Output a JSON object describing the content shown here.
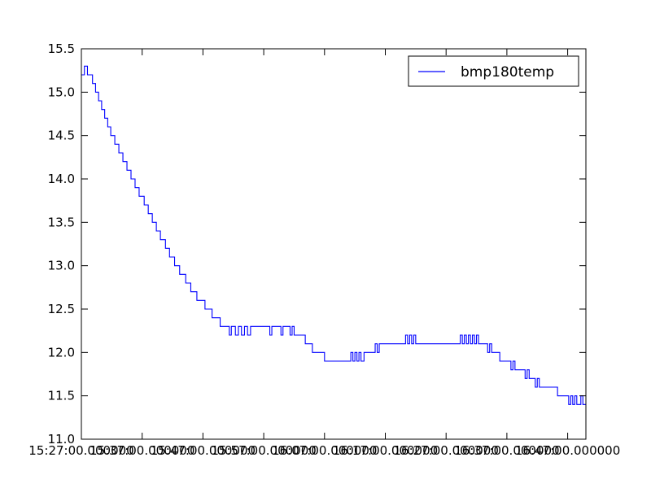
{
  "chart_data": {
    "type": "line",
    "title": "",
    "xlabel": "",
    "ylabel": "",
    "xlim": [
      "15:27:00",
      "16:50:00"
    ],
    "ylim": [
      11.0,
      15.5
    ],
    "grid": false,
    "legend": {
      "placement": "top-right",
      "entries": [
        "bmp180temp"
      ]
    },
    "x_ticks": [
      {
        "t": "15:27:00",
        "label": "15:27:00"
      },
      {
        "t": "15:37:00",
        "label": "15:37:00"
      },
      {
        "t": "15:47:00",
        "label": "15:47:00"
      },
      {
        "t": "15:57:00",
        "label": "15:57:00"
      },
      {
        "t": "16:07:00",
        "label": "16:07:00"
      },
      {
        "t": "16:17:00",
        "label": "16:17:00"
      },
      {
        "t": "16:27:00",
        "label": "16:27:00"
      },
      {
        "t": "16:37:00",
        "label": "16:37:00"
      },
      {
        "t": "16:47:00",
        "label": "16:47:00.000000"
      }
    ],
    "x_tick_overlap_labels": [
      {
        "t": "15:27:00",
        "label": "15:27:00.000000"
      },
      {
        "t": "15:37:00",
        "label": "15:37:00.000000"
      },
      {
        "t": "15:47:00",
        "label": "15:47:00.000000"
      },
      {
        "t": "15:57:00",
        "label": "15:57:00.000000"
      },
      {
        "t": "16:07:00",
        "label": "16:07:00.000000"
      },
      {
        "t": "16:17:00",
        "label": "16:17:00.000000"
      },
      {
        "t": "16:27:00",
        "label": "16:27:00.000000"
      },
      {
        "t": "16:37:00",
        "label": "16:37:00.000000"
      }
    ],
    "y_ticks": [
      "11.0",
      "11.5",
      "12.0",
      "12.5",
      "13.0",
      "13.5",
      "14.0",
      "14.5",
      "15.0",
      "15.5"
    ],
    "series": [
      {
        "name": "bmp180temp",
        "color": "#0000ff",
        "points": [
          [
            "15:27:00",
            15.2
          ],
          [
            "15:27:30",
            15.3
          ],
          [
            "15:28:00",
            15.2
          ],
          [
            "15:28:50",
            15.1
          ],
          [
            "15:29:20",
            15.0
          ],
          [
            "15:29:50",
            14.9
          ],
          [
            "15:30:20",
            14.8
          ],
          [
            "15:30:50",
            14.7
          ],
          [
            "15:31:20",
            14.6
          ],
          [
            "15:31:50",
            14.5
          ],
          [
            "15:32:30",
            14.4
          ],
          [
            "15:33:10",
            14.3
          ],
          [
            "15:33:50",
            14.2
          ],
          [
            "15:34:30",
            14.1
          ],
          [
            "15:35:10",
            14.0
          ],
          [
            "15:35:50",
            13.9
          ],
          [
            "15:36:30",
            13.8
          ],
          [
            "15:37:20",
            13.7
          ],
          [
            "15:38:00",
            13.6
          ],
          [
            "15:38:40",
            13.5
          ],
          [
            "15:39:20",
            13.4
          ],
          [
            "15:40:00",
            13.3
          ],
          [
            "15:40:50",
            13.2
          ],
          [
            "15:41:30",
            13.1
          ],
          [
            "15:42:20",
            13.0
          ],
          [
            "15:43:10",
            12.9
          ],
          [
            "15:44:10",
            12.8
          ],
          [
            "15:45:00",
            12.7
          ],
          [
            "15:46:00",
            12.6
          ],
          [
            "15:47:20",
            12.5
          ],
          [
            "15:48:30",
            12.4
          ],
          [
            "15:49:50",
            12.3
          ],
          [
            "15:51:00",
            12.3
          ],
          [
            "15:51:20",
            12.2
          ],
          [
            "15:51:40",
            12.3
          ],
          [
            "15:52:20",
            12.2
          ],
          [
            "15:52:50",
            12.3
          ],
          [
            "15:53:20",
            12.2
          ],
          [
            "15:53:50",
            12.3
          ],
          [
            "15:54:20",
            12.2
          ],
          [
            "15:54:50",
            12.3
          ],
          [
            "15:56:00",
            12.3
          ],
          [
            "15:57:40",
            12.3
          ],
          [
            "15:58:00",
            12.2
          ],
          [
            "15:58:20",
            12.3
          ],
          [
            "15:59:30",
            12.3
          ],
          [
            "15:59:50",
            12.2
          ],
          [
            "16:00:10",
            12.3
          ],
          [
            "16:01:00",
            12.3
          ],
          [
            "16:01:20",
            12.2
          ],
          [
            "16:01:40",
            12.3
          ],
          [
            "16:02:00",
            12.2
          ],
          [
            "16:03:30",
            12.2
          ],
          [
            "16:03:50",
            12.1
          ],
          [
            "16:04:30",
            12.1
          ],
          [
            "16:05:00",
            12.0
          ],
          [
            "16:06:30",
            12.0
          ],
          [
            "16:07:00",
            11.9
          ],
          [
            "16:11:00",
            11.9
          ],
          [
            "16:11:20",
            12.0
          ],
          [
            "16:11:40",
            11.9
          ],
          [
            "16:12:00",
            12.0
          ],
          [
            "16:12:20",
            11.9
          ],
          [
            "16:12:40",
            12.0
          ],
          [
            "16:13:00",
            11.9
          ],
          [
            "16:13:30",
            12.0
          ],
          [
            "16:15:00",
            12.0
          ],
          [
            "16:15:20",
            12.1
          ],
          [
            "16:15:40",
            12.0
          ],
          [
            "16:16:00",
            12.1
          ],
          [
            "16:17:00",
            12.1
          ],
          [
            "16:18:00",
            12.1
          ],
          [
            "16:20:00",
            12.1
          ],
          [
            "16:20:20",
            12.2
          ],
          [
            "16:20:40",
            12.1
          ],
          [
            "16:21:00",
            12.2
          ],
          [
            "16:21:20",
            12.1
          ],
          [
            "16:21:40",
            12.2
          ],
          [
            "16:22:00",
            12.1
          ],
          [
            "16:29:00",
            12.1
          ],
          [
            "16:29:20",
            12.2
          ],
          [
            "16:29:40",
            12.1
          ],
          [
            "16:30:00",
            12.2
          ],
          [
            "16:30:20",
            12.1
          ],
          [
            "16:30:40",
            12.2
          ],
          [
            "16:31:00",
            12.1
          ],
          [
            "16:31:20",
            12.2
          ],
          [
            "16:31:40",
            12.1
          ],
          [
            "16:32:00",
            12.2
          ],
          [
            "16:32:20",
            12.1
          ],
          [
            "16:33:30",
            12.1
          ],
          [
            "16:33:50",
            12.0
          ],
          [
            "16:34:10",
            12.1
          ],
          [
            "16:34:30",
            12.0
          ],
          [
            "16:35:30",
            12.0
          ],
          [
            "16:35:50",
            11.9
          ],
          [
            "16:37:20",
            11.9
          ],
          [
            "16:37:40",
            11.8
          ],
          [
            "16:38:00",
            11.9
          ],
          [
            "16:38:20",
            11.8
          ],
          [
            "16:39:40",
            11.8
          ],
          [
            "16:40:00",
            11.7
          ],
          [
            "16:40:20",
            11.8
          ],
          [
            "16:40:40",
            11.7
          ],
          [
            "16:41:20",
            11.7
          ],
          [
            "16:41:40",
            11.6
          ],
          [
            "16:42:00",
            11.7
          ],
          [
            "16:42:20",
            11.6
          ],
          [
            "16:45:00",
            11.6
          ],
          [
            "16:45:20",
            11.5
          ],
          [
            "16:46:50",
            11.5
          ],
          [
            "16:47:10",
            11.4
          ],
          [
            "16:47:30",
            11.5
          ],
          [
            "16:47:50",
            11.4
          ],
          [
            "16:48:10",
            11.5
          ],
          [
            "16:48:30",
            11.4
          ],
          [
            "16:48:50",
            11.4
          ],
          [
            "16:49:10",
            11.5
          ],
          [
            "16:49:30",
            11.4
          ],
          [
            "16:50:00",
            11.4
          ]
        ]
      }
    ]
  }
}
